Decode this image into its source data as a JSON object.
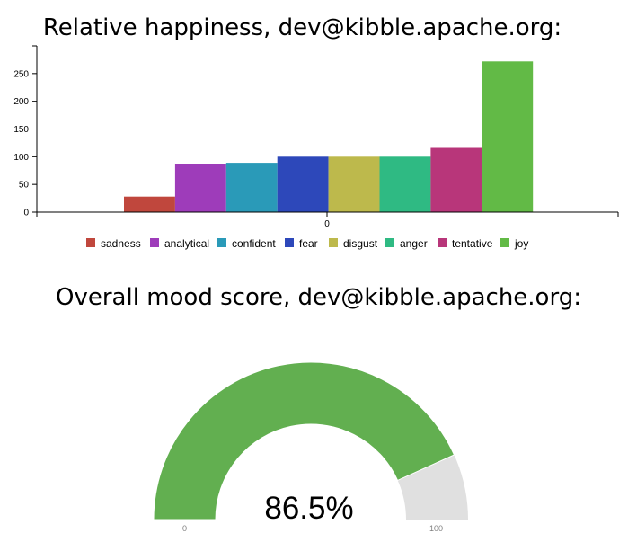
{
  "titles": {
    "happiness": "Relative happiness, dev@kibble.apache.org:",
    "mood": "Overall mood score, dev@kibble.apache.org:"
  },
  "chart_data": [
    {
      "type": "bar",
      "categories": [
        "0"
      ],
      "series": [
        {
          "name": "sadness",
          "values": [
            28
          ],
          "color": "#c0473d"
        },
        {
          "name": "analytical",
          "values": [
            86
          ],
          "color": "#9e3cba"
        },
        {
          "name": "confident",
          "values": [
            89
          ],
          "color": "#2a9ab8"
        },
        {
          "name": "fear",
          "values": [
            100
          ],
          "color": "#2d48ba"
        },
        {
          "name": "disgust",
          "values": [
            100
          ],
          "color": "#bdb94c"
        },
        {
          "name": "anger",
          "values": [
            100
          ],
          "color": "#2fba83"
        },
        {
          "name": "tentative",
          "values": [
            116
          ],
          "color": "#b8367a"
        },
        {
          "name": "joy",
          "values": [
            272
          ],
          "color": "#62ba46"
        }
      ],
      "yticks": [
        0,
        50,
        100,
        150,
        200,
        250
      ],
      "ylim": [
        0,
        300
      ],
      "legend": "bottom"
    },
    {
      "type": "gauge",
      "value": 86.5,
      "value_label": "86.5%",
      "min": 0,
      "max": 100,
      "min_label": "0",
      "max_label": "100",
      "color": "#62af50",
      "track_color": "#e0e0e0"
    }
  ]
}
